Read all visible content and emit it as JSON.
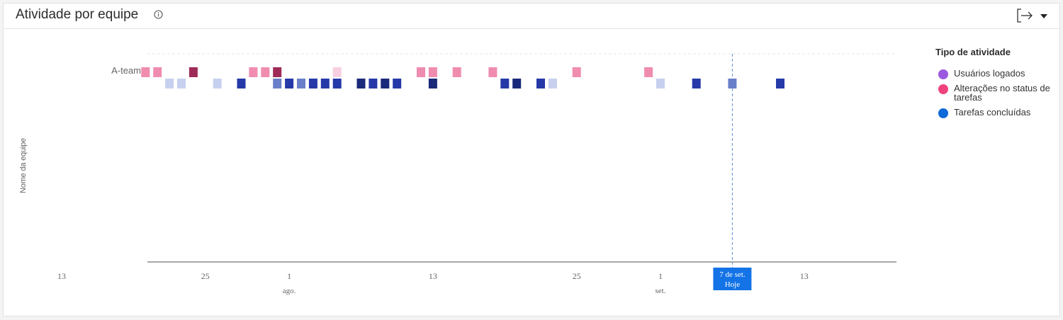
{
  "widget": {
    "title": "Atividade por equipe",
    "info_icon": "info-circle-icon",
    "export_icon": "export-arrow-icon",
    "menu_icon": "caret-down-icon"
  },
  "chart_data": {
    "type": "scatter",
    "ylabel": "Nome da equipe",
    "team": "A-team",
    "x_ticks": [
      {
        "date": "2023-07-13",
        "label": "13"
      },
      {
        "date": "2023-07-25",
        "label": "25"
      },
      {
        "date": "2023-08-01",
        "label": "1",
        "month": "ago."
      },
      {
        "date": "2023-08-13",
        "label": "13"
      },
      {
        "date": "2023-08-25",
        "label": "25"
      },
      {
        "date": "2023-09-01",
        "label": "1",
        "month": "set."
      },
      {
        "date": "2023-09-13",
        "label": "13"
      }
    ],
    "today": {
      "date": "2023-09-07",
      "label_line1": "7 de set.",
      "label_line2": "Hoje"
    },
    "legend": {
      "title": "Tipo de atividade",
      "items": [
        {
          "key": "logins",
          "label": "Usuários logados",
          "color": "#9b59e0"
        },
        {
          "key": "status",
          "label": "Alterações no status de tarefas",
          "color": "#f0437e"
        },
        {
          "key": "completed",
          "label": "Tarefas concluídas",
          "color": "#0f6ad8"
        }
      ]
    },
    "series": [
      {
        "key": "status",
        "points": [
          {
            "date": "2023-07-20",
            "level": 2
          },
          {
            "date": "2023-07-21",
            "level": 2
          },
          {
            "date": "2023-07-24",
            "level": 4
          },
          {
            "date": "2023-07-29",
            "level": 2
          },
          {
            "date": "2023-07-30",
            "level": 2
          },
          {
            "date": "2023-07-31",
            "level": 4
          },
          {
            "date": "2023-08-05",
            "level": 1
          },
          {
            "date": "2023-08-12",
            "level": 2
          },
          {
            "date": "2023-08-13",
            "level": 2
          },
          {
            "date": "2023-08-15",
            "level": 2
          },
          {
            "date": "2023-08-18",
            "level": 2
          },
          {
            "date": "2023-08-25",
            "level": 2
          },
          {
            "date": "2023-08-31",
            "level": 2
          }
        ]
      },
      {
        "key": "completed",
        "points": [
          {
            "date": "2023-07-22",
            "level": 1
          },
          {
            "date": "2023-07-23",
            "level": 1
          },
          {
            "date": "2023-07-26",
            "level": 1
          },
          {
            "date": "2023-07-28",
            "level": 3
          },
          {
            "date": "2023-07-31",
            "level": 2
          },
          {
            "date": "2023-08-01",
            "level": 3
          },
          {
            "date": "2023-08-02",
            "level": 2
          },
          {
            "date": "2023-08-03",
            "level": 3
          },
          {
            "date": "2023-08-04",
            "level": 3
          },
          {
            "date": "2023-08-05",
            "level": 3
          },
          {
            "date": "2023-08-07",
            "level": 4
          },
          {
            "date": "2023-08-08",
            "level": 3
          },
          {
            "date": "2023-08-09",
            "level": 4
          },
          {
            "date": "2023-08-10",
            "level": 3
          },
          {
            "date": "2023-08-13",
            "level": 4
          },
          {
            "date": "2023-08-19",
            "level": 3
          },
          {
            "date": "2023-08-20",
            "level": 4
          },
          {
            "date": "2023-08-22",
            "level": 3
          },
          {
            "date": "2023-08-23",
            "level": 1
          },
          {
            "date": "2023-09-01",
            "level": 1
          },
          {
            "date": "2023-09-04",
            "level": 3
          },
          {
            "date": "2023-09-07",
            "level": 2
          },
          {
            "date": "2023-09-11",
            "level": 3
          }
        ]
      }
    ],
    "shades": {
      "status": [
        "#f7cfe0",
        "#f08cb0",
        "#c8396e",
        "#9e2a57"
      ],
      "completed": [
        "#c7d0ee",
        "#6a7fca",
        "#2639a8",
        "#1a2a7a"
      ]
    }
  }
}
